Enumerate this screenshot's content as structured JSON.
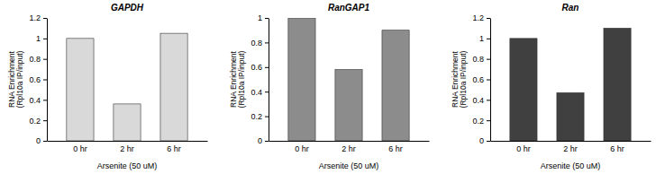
{
  "chart_data": [
    {
      "type": "bar",
      "title": "GAPDH",
      "categories": [
        "0 hr",
        "2 hr",
        "6 hr"
      ],
      "values": [
        1,
        0.36,
        1.05
      ],
      "color": "#d9d9d9",
      "ylim": [
        0,
        1.2
      ],
      "yticks": [
        0,
        0.2,
        0.4,
        0.6,
        0.8,
        1,
        1.2
      ],
      "x_label": "Arsenite (50 uM)",
      "y_label": [
        "RNA Enrichment",
        "(Rpl10a IP/input)"
      ]
    },
    {
      "type": "bar",
      "title": "RanGAP1",
      "categories": [
        "0 hr",
        "2 hr",
        "6 hr"
      ],
      "values": [
        1,
        0.58,
        0.9
      ],
      "color": "#8c8c8c",
      "ylim": [
        0,
        1
      ],
      "yticks": [
        0,
        0.2,
        0.4,
        0.6,
        0.8,
        1
      ],
      "x_label": "Arsenite (50 uM)",
      "y_label": [
        "RNA Enrichment",
        "(Rpl10a IP/input)"
      ]
    },
    {
      "type": "bar",
      "title": "Ran",
      "categories": [
        "0 hr",
        "2 hr",
        "6 hr"
      ],
      "values": [
        1,
        0.47,
        1.1
      ],
      "color": "#404040",
      "ylim": [
        0,
        1.2
      ],
      "yticks": [
        0,
        0.2,
        0.4,
        0.6,
        0.8,
        1,
        1.2
      ],
      "x_label": "Arsenite (50 uM)",
      "y_label": [
        "RNA Enrichment",
        "(Rpl10a IP/input)"
      ]
    }
  ]
}
